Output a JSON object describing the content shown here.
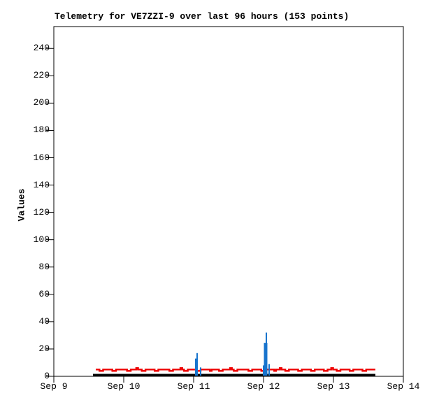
{
  "window": {
    "background": "#ffffff"
  },
  "chart_data": {
    "type": "line",
    "title": "Telemetry for VE7ZZI-9 over last 96 hours (153 points)",
    "xlabel": "",
    "ylabel": "Values",
    "ylim": [
      0,
      256
    ],
    "yticks": [
      0,
      20,
      40,
      60,
      80,
      100,
      120,
      140,
      160,
      180,
      200,
      220,
      240
    ],
    "x_tick_labels": [
      "Sep 9",
      "Sep 10",
      "Sep 11",
      "Sep 12",
      "Sep 13",
      "Sep 14"
    ],
    "x_span_days": 5,
    "grid": false,
    "legend": "none",
    "frame_color": "#000000",
    "series": [
      {
        "name": "black-baseline",
        "color": "#000000",
        "style": "line",
        "line_width": 3,
        "x_start_days": 0.56,
        "x_end_days": 4.6,
        "value": 1
      },
      {
        "name": "red-telemetry",
        "color": "#ee0000",
        "style": "steps",
        "line_width": 2.5,
        "x_start_days": 0.6,
        "x_end_days": 4.6,
        "values": [
          5,
          5,
          4,
          4,
          5,
          5,
          5,
          5,
          5,
          4,
          4,
          5,
          5,
          5,
          5,
          5,
          5,
          4,
          4,
          5,
          5,
          5,
          6,
          5,
          5,
          4,
          4,
          5,
          5,
          5,
          5,
          5,
          4,
          4,
          5,
          5,
          5,
          5,
          5,
          5,
          4,
          4,
          5,
          5,
          5,
          5,
          6,
          5,
          4,
          4,
          5,
          5,
          5,
          5,
          5,
          4,
          4,
          5,
          5,
          5,
          5,
          5,
          4,
          5,
          5,
          5,
          5,
          4,
          4,
          5,
          5,
          5,
          5,
          6,
          5,
          4,
          4,
          5,
          5,
          5,
          5,
          5,
          5,
          4,
          4,
          5,
          5,
          5,
          5,
          5,
          4,
          4,
          5,
          5,
          5,
          5,
          5,
          4,
          5,
          5,
          6,
          5,
          5,
          4,
          4,
          5,
          5,
          5,
          5,
          5,
          4,
          4,
          5,
          5,
          5,
          5,
          5,
          4,
          4,
          5,
          5,
          5,
          5,
          5,
          4,
          4,
          5,
          5,
          6,
          5,
          5,
          4,
          4,
          5,
          5,
          5,
          5,
          5,
          4,
          4,
          5,
          5,
          5,
          5,
          5,
          4,
          4,
          5,
          5,
          5,
          5,
          5,
          5
        ]
      },
      {
        "name": "blue-spikes",
        "color": "#1874cd",
        "style": "impulses",
        "points": [
          {
            "t_days": 2.04,
            "value": 13,
            "line_width": 4
          },
          {
            "t_days": 2.05,
            "value": 17,
            "line_width": 2
          },
          {
            "t_days": 2.1,
            "value": 6.5,
            "line_width": 2
          },
          {
            "t_days": 3.0,
            "value": 8,
            "line_width": 2
          },
          {
            "t_days": 3.03,
            "value": 24.5,
            "line_width": 5
          },
          {
            "t_days": 3.04,
            "value": 32,
            "line_width": 2
          },
          {
            "t_days": 3.08,
            "value": 9,
            "line_width": 2
          }
        ]
      }
    ]
  }
}
